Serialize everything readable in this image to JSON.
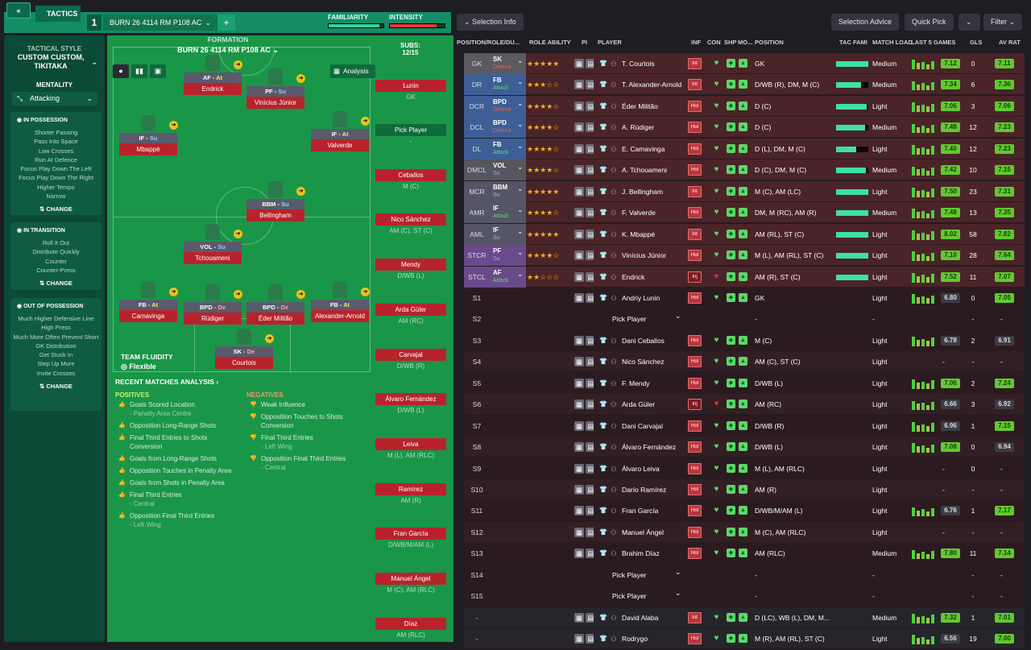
{
  "topbar": {
    "back_icon": "double-chevron-left-icon",
    "tactics_label": "TACTICS",
    "slot": "1",
    "tactic_name": "BURN 26 4114 RM P108 AC",
    "add": "+",
    "familiarity_label": "FAMILIARITY",
    "intensity_label": "INTENSITY",
    "familiarity_level": 0.92,
    "intensity_level": 0.86
  },
  "left": {
    "style_label": "TACTICAL STYLE",
    "style_value": "CUSTOM CUSTOM, TIKITAKA",
    "mentality_label": "MENTALITY",
    "mentality_value": "Attacking",
    "in_possession": {
      "title": "IN POSSESSION",
      "items": [
        "Shorter Passing",
        "Pass Into Space",
        "Low Crosses",
        "Run At Defence",
        "Focus Play Down The Left",
        "Focus Play Down The Right",
        "Higher Tempo",
        "Narrow"
      ],
      "change": "CHANGE"
    },
    "in_transition": {
      "title": "IN TRANSITION",
      "items": [
        "Roll It Out",
        "Distribute Quickly",
        "Counter",
        "Counter-Press"
      ],
      "change": "CHANGE"
    },
    "out_of_possession": {
      "title": "OUT OF POSSESSION",
      "items": [
        "Much Higher Defensive Line",
        "High Press",
        "Much More Often Prevent Short GK Distribution",
        "Get Stuck In",
        "Step Up More",
        "Invite Crosses"
      ],
      "change": "CHANGE"
    }
  },
  "formation": {
    "label": "FORMATION",
    "name": "BURN 26 4114 RM P108 AC",
    "subs_label": "SUBS:",
    "subs_count": "12/15",
    "analysis": "Analysis",
    "fluidity_label": "TEAM FLUIDITY",
    "fluidity_value": "Flexible",
    "players": [
      {
        "role": "AF",
        "duty": "At",
        "name": "Endrick"
      },
      {
        "role": "PF",
        "duty": "Su",
        "name": "Vinícius Júnior"
      },
      {
        "role": "IF",
        "duty": "Su",
        "name": "Mbappé"
      },
      {
        "role": "IF",
        "duty": "At",
        "name": "Valverde"
      },
      {
        "role": "BBM",
        "duty": "Su",
        "name": "Bellingham"
      },
      {
        "role": "VOL",
        "duty": "Su",
        "name": "Tchouameni"
      },
      {
        "role": "FB",
        "duty": "At",
        "name": "Camavinga"
      },
      {
        "role": "BPD",
        "duty": "De",
        "name": "Rüdiger"
      },
      {
        "role": "BPD",
        "duty": "De",
        "name": "Éder Militão"
      },
      {
        "role": "FB",
        "duty": "At",
        "name": "Alexander-Arnold"
      },
      {
        "role": "SK",
        "duty": "De",
        "name": "Courtois"
      }
    ]
  },
  "subs": [
    {
      "name": "Lunin",
      "pos": "GK"
    },
    {
      "name": "Pick Player",
      "pos": "-"
    },
    {
      "name": "Ceballos",
      "pos": "M (C)"
    },
    {
      "name": "Nico Sánchez",
      "pos": "AM (C), ST (C)"
    },
    {
      "name": "Mendy",
      "pos": "D/WB (L)"
    },
    {
      "name": "Arda Güler",
      "pos": "AM (RC)"
    },
    {
      "name": "Carvajal",
      "pos": "D/WB (R)"
    },
    {
      "name": "Álvaro Fernández",
      "pos": "D/WB (L)"
    },
    {
      "name": "Leiva",
      "pos": "M (L), AM (RLC)"
    },
    {
      "name": "Ramírez",
      "pos": "AM (R)"
    },
    {
      "name": "Fran García",
      "pos": "D/WB/M/AM (L)"
    },
    {
      "name": "Manuel Ángel",
      "pos": "M (C), AM (RLC)"
    },
    {
      "name": "Díaz",
      "pos": "AM (RLC)"
    }
  ],
  "analysis": {
    "title": "RECENT MATCHES ANALYSIS",
    "pos_title": "POSITIVES",
    "neg_title": "NEGATIVES",
    "positives": [
      {
        "t": "Goals Scored Location",
        "s": "- Penalty Area Centre"
      },
      {
        "t": "Opposition Long-Range Shots",
        "s": ""
      },
      {
        "t": "Final Third Entries to Shots Conversion",
        "s": ""
      },
      {
        "t": "Goals from Long-Range Shots",
        "s": ""
      },
      {
        "t": "Opposition Touches in Penalty Area",
        "s": ""
      },
      {
        "t": "Goals from Shots in Penalty Area",
        "s": ""
      },
      {
        "t": "Final Third Entries",
        "s": "- Central"
      },
      {
        "t": "Opposition Final Third Entries",
        "s": "- Left Wing"
      }
    ],
    "negatives": [
      {
        "t": "Weak Influence",
        "s": ""
      },
      {
        "t": "Opposition Touches to Shots Conversion",
        "s": ""
      },
      {
        "t": "Final Third Entries",
        "s": "- Left Wing"
      },
      {
        "t": "Opposition Final Third Entries",
        "s": "- Central"
      }
    ]
  },
  "right_toolbar": {
    "selection_info": "Selection Info",
    "selection_advice": "Selection Advice",
    "quick_pick": "Quick Pick",
    "filter": "Filter"
  },
  "columns": [
    "POSITION/ROLE/DU...",
    "ROLE ABILITY",
    "PI",
    "PLAYER",
    "INF",
    "CON",
    "SHP",
    "MO...",
    "POSITION",
    "TAC FAMI",
    "MATCH LOAD",
    "LAST 5 GAMES",
    "GLS",
    "AV RAT"
  ],
  "rows": [
    {
      "pos": "GK",
      "role": "SK",
      "duty": "Defend",
      "stars": "★★★★★",
      "name": "T. Courtois",
      "inf": "Int",
      "position": "GK",
      "fam": 1.0,
      "load": "Medium",
      "rat": "7.12",
      "gls": "0",
      "avr": "7.11"
    },
    {
      "pos": "DR",
      "role": "FB",
      "duty": "Attack",
      "stars": "★★★☆☆",
      "name": "T. Alexander-Arnold",
      "inf": "Int",
      "position": "D/WB (R), DM, M (C)",
      "fam": 0.78,
      "load": "Medium",
      "rat": "7.34",
      "gls": "6",
      "avr": "7.36"
    },
    {
      "pos": "DCR",
      "role": "BPD",
      "duty": "Defend",
      "stars": "★★★★☆",
      "name": "Éder Militão",
      "inf": "Hol",
      "position": "D (C)",
      "fam": 0.95,
      "load": "Light",
      "rat": "7.06",
      "gls": "3",
      "avr": "7.06"
    },
    {
      "pos": "DCL",
      "role": "BPD",
      "duty": "Defend",
      "stars": "★★★★☆",
      "name": "A. Rüdiger",
      "inf": "Hol",
      "position": "D (C)",
      "fam": 0.9,
      "load": "Medium",
      "rat": "7.48",
      "gls": "12",
      "avr": "7.23"
    },
    {
      "pos": "DL",
      "role": "FB",
      "duty": "Attack",
      "stars": "★★★★☆",
      "name": "E. Camavinga",
      "inf": "Hol",
      "position": "D (L), DM, M (C)",
      "fam": 0.62,
      "load": "Light",
      "rat": "7.40",
      "gls": "12",
      "avr": "7.23"
    },
    {
      "pos": "DMCL",
      "role": "VOL",
      "duty": "Su",
      "stars": "★★★★☆",
      "name": "A. Tchouameni",
      "inf": "Hol",
      "position": "D (C), DM, M (C)",
      "fam": 0.92,
      "load": "Medium",
      "rat": "7.42",
      "gls": "10",
      "avr": "7.15"
    },
    {
      "pos": "MCR",
      "role": "BBM",
      "duty": "Su",
      "stars": "★★★★★",
      "name": "J. Bellingham",
      "inf": "Int",
      "position": "M (C), AM (LC)",
      "fam": 1.0,
      "load": "Light",
      "rat": "7.50",
      "gls": "23",
      "avr": "7.31"
    },
    {
      "pos": "AMR",
      "role": "IF",
      "duty": "Attack",
      "stars": "★★★★☆",
      "name": "F. Valverde",
      "inf": "Hol",
      "position": "DM, M (RC), AM (R)",
      "fam": 1.0,
      "load": "Medium",
      "rat": "7.48",
      "gls": "13",
      "avr": "7.35"
    },
    {
      "pos": "AML",
      "role": "IF",
      "duty": "Su",
      "stars": "★★★★★",
      "name": "K. Mbappé",
      "inf": "Int",
      "position": "AM (RL), ST (C)",
      "fam": 1.0,
      "load": "Light",
      "rat": "8.02",
      "gls": "58",
      "avr": "7.82"
    },
    {
      "pos": "STCR",
      "role": "PF",
      "duty": "Su",
      "stars": "★★★★☆",
      "name": "Vinícius Júnior",
      "inf": "Hol",
      "position": "M (L), AM (RL), ST (C)",
      "fam": 1.0,
      "load": "Light",
      "rat": "7.10",
      "gls": "28",
      "avr": "7.64"
    },
    {
      "pos": "STCL",
      "role": "AF",
      "duty": "Attack",
      "stars": "★★☆☆☆",
      "name": "Endrick",
      "inf": "Inj",
      "position": "AM (R), ST (C)",
      "fam": 1.0,
      "load": "Light",
      "rat": "7.52",
      "gls": "11",
      "avr": "7.07"
    },
    {
      "pos": "S1",
      "role": "",
      "duty": "",
      "stars": "",
      "name": "Andriy Lunin",
      "inf": "Hol",
      "position": "GK",
      "fam": 0,
      "load": "Light",
      "rat": "6.80",
      "gls": "0",
      "avr": "7.05"
    },
    {
      "pos": "S2",
      "role": "",
      "duty": "",
      "stars": "",
      "name": "Pick Player",
      "inf": "",
      "position": "-",
      "fam": 0,
      "load": "-",
      "rat": "",
      "gls": "-",
      "avr": "-"
    },
    {
      "pos": "S3",
      "role": "",
      "duty": "",
      "stars": "",
      "name": "Dani Ceballos",
      "inf": "Hol",
      "position": "M (C)",
      "fam": 0,
      "load": "Light",
      "rat": "6.78",
      "gls": "2",
      "avr": "6.91"
    },
    {
      "pos": "S4",
      "role": "",
      "duty": "",
      "stars": "",
      "name": "Nico Sánchez",
      "inf": "Hol",
      "position": "AM (C), ST (C)",
      "fam": 0,
      "load": "Light",
      "rat": "-",
      "gls": "-",
      "avr": "-"
    },
    {
      "pos": "S5",
      "role": "",
      "duty": "",
      "stars": "",
      "name": "F. Mendy",
      "inf": "Hol",
      "position": "D/WB (L)",
      "fam": 0,
      "load": "Light",
      "rat": "7.06",
      "gls": "2",
      "avr": "7.24"
    },
    {
      "pos": "S6",
      "role": "",
      "duty": "",
      "stars": "",
      "name": "Arda Güler",
      "inf": "Inj",
      "position": "AM (RC)",
      "fam": 0,
      "load": "Light",
      "rat": "6.66",
      "gls": "3",
      "avr": "6.92"
    },
    {
      "pos": "S7",
      "role": "",
      "duty": "",
      "stars": "",
      "name": "Dani Carvajal",
      "inf": "Hol",
      "position": "D/WB (R)",
      "fam": 0,
      "load": "Light",
      "rat": "6.96",
      "gls": "1",
      "avr": "7.15"
    },
    {
      "pos": "S8",
      "role": "",
      "duty": "",
      "stars": "",
      "name": "Álvaro Fernández",
      "inf": "Hol",
      "position": "D/WB (L)",
      "fam": 0,
      "load": "Light",
      "rat": "7.08",
      "gls": "0",
      "avr": "6.94"
    },
    {
      "pos": "S9",
      "role": "",
      "duty": "",
      "stars": "",
      "name": "Álvaro Leiva",
      "inf": "Hol",
      "position": "M (L), AM (RLC)",
      "fam": 0,
      "load": "Light",
      "rat": "-",
      "gls": "0",
      "avr": "-"
    },
    {
      "pos": "S10",
      "role": "",
      "duty": "",
      "stars": "",
      "name": "Darío Ramírez",
      "inf": "Hol",
      "position": "AM (R)",
      "fam": 0,
      "load": "Light",
      "rat": "-",
      "gls": "-",
      "avr": "-"
    },
    {
      "pos": "S11",
      "role": "",
      "duty": "",
      "stars": "",
      "name": "Fran García",
      "inf": "Hol",
      "position": "D/WB/M/AM (L)",
      "fam": 0,
      "load": "Light",
      "rat": "6.76",
      "gls": "1",
      "avr": "7.17"
    },
    {
      "pos": "S12",
      "role": "",
      "duty": "",
      "stars": "",
      "name": "Manuel Ángel",
      "inf": "Hol",
      "position": "M (C), AM (RLC)",
      "fam": 0,
      "load": "Light",
      "rat": "-",
      "gls": "-",
      "avr": "-"
    },
    {
      "pos": "S13",
      "role": "",
      "duty": "",
      "stars": "",
      "name": "Brahim Díaz",
      "inf": "Hol",
      "position": "AM (RLC)",
      "fam": 0,
      "load": "Medium",
      "rat": "7.80",
      "gls": "11",
      "avr": "7.14"
    },
    {
      "pos": "S14",
      "role": "",
      "duty": "",
      "stars": "",
      "name": "Pick Player",
      "inf": "",
      "position": "-",
      "fam": 0,
      "load": "-",
      "rat": "",
      "gls": "-",
      "avr": "-"
    },
    {
      "pos": "S15",
      "role": "",
      "duty": "",
      "stars": "",
      "name": "Pick Player",
      "inf": "",
      "position": "-",
      "fam": 0,
      "load": "-",
      "rat": "",
      "gls": "-",
      "avr": "-"
    },
    {
      "pos": "-",
      "role": "",
      "duty": "",
      "stars": "",
      "name": "David Alaba",
      "inf": "Int",
      "position": "D (LC), WB (L), DM, M...",
      "fam": 0,
      "load": "Medium",
      "rat": "7.32",
      "gls": "1",
      "avr": "7.01"
    },
    {
      "pos": "-",
      "role": "",
      "duty": "",
      "stars": "",
      "name": "Rodrygo",
      "inf": "Hol",
      "position": "M (R), AM (RL), ST (C)",
      "fam": 0,
      "load": "Light",
      "rat": "6.56",
      "gls": "19",
      "avr": "7.00"
    }
  ],
  "colors": {
    "pitch": "#178a46",
    "panel": "#0a4a36",
    "accent": "#148c66",
    "row_first": "#4a2428",
    "row_sub": "#2e1d22"
  }
}
